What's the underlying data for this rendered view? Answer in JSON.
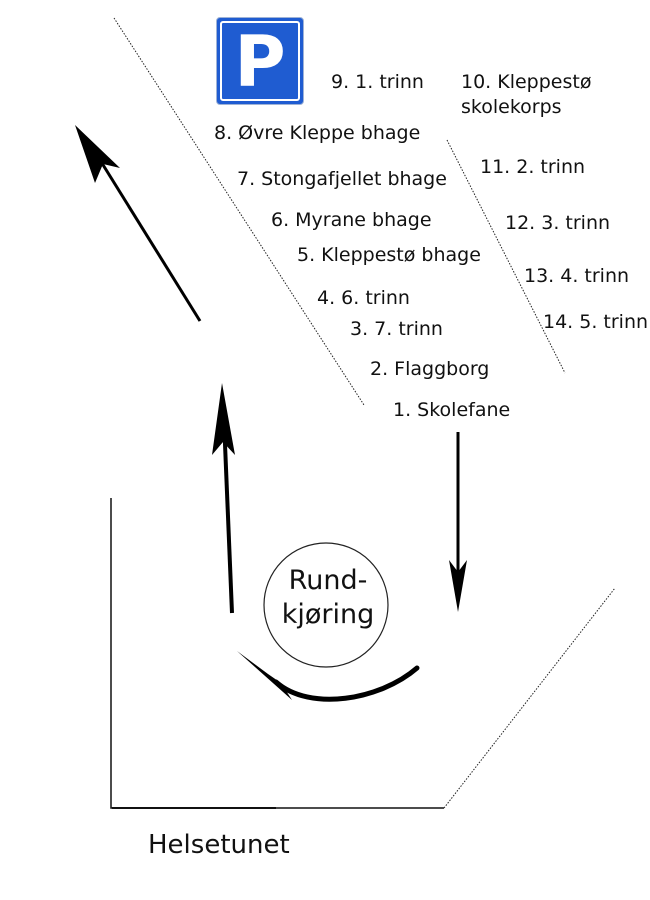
{
  "parking_sign": {
    "letter": "P",
    "color": "#1f5cd1"
  },
  "stops": [
    {
      "label": "1. Skolefane"
    },
    {
      "label": "2. Flaggborg"
    },
    {
      "label": "3. 7. trinn"
    },
    {
      "label": "4. 6. trinn"
    },
    {
      "label": "5. Kleppestø bhage"
    },
    {
      "label": "6. Myrane bhage"
    },
    {
      "label": "7. Stongafjellet bhage"
    },
    {
      "label": "8. Øvre Kleppe bhage"
    },
    {
      "label": "9. 1. trinn"
    },
    {
      "label": "10. Kleppestø\nskolekorps"
    },
    {
      "label": "11. 2. trinn"
    },
    {
      "label": "12. 3. trinn"
    },
    {
      "label": "13. 4. trinn"
    },
    {
      "label": "14. 5. trinn"
    }
  ],
  "roundabout": {
    "label": "Rund-\nkjøring"
  },
  "building": {
    "label": "Helsetunet"
  }
}
